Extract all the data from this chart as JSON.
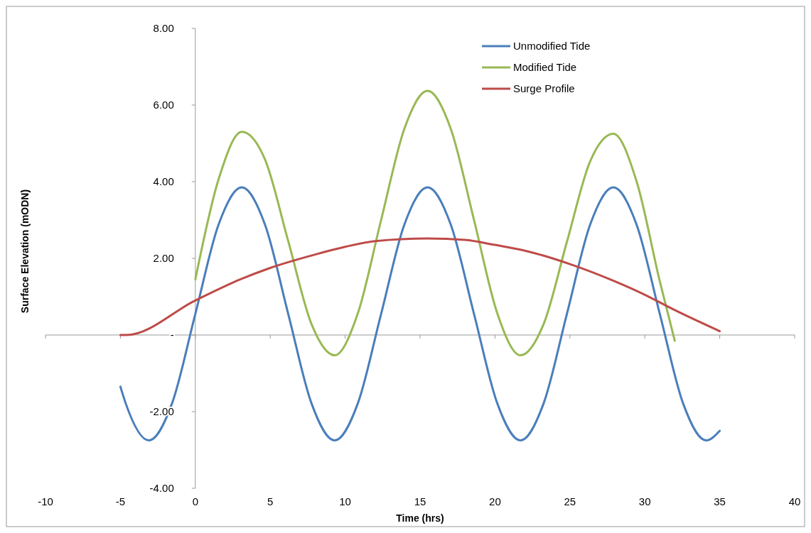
{
  "chart_data": {
    "type": "line",
    "xlabel": "Time (hrs)",
    "ylabel": "Surface Elevation (mODN)",
    "xlim": [
      -10,
      40
    ],
    "xticks": [
      -10,
      -5,
      0,
      5,
      10,
      15,
      20,
      25,
      30,
      35,
      40
    ],
    "ylim": [
      -4,
      8
    ],
    "yticks": [
      {
        "value": -4,
        "label": "-4.00"
      },
      {
        "value": -2,
        "label": "-2.00"
      },
      {
        "value": 0,
        "label": "-"
      },
      {
        "value": 2,
        "label": "2.00"
      },
      {
        "value": 4,
        "label": "4.00"
      },
      {
        "value": 6,
        "label": "6.00"
      },
      {
        "value": 8,
        "label": "8.00"
      }
    ],
    "legend": "top right",
    "marker": "none",
    "series": [
      {
        "name": "Unmodified Tide",
        "color": "#4a7ebb",
        "x": [
          -5,
          -4.65,
          -3.1,
          -1.55,
          0,
          1.55,
          3.1,
          4.65,
          6.2,
          7.75,
          9.3,
          10.85,
          12.4,
          13.95,
          15.5,
          17.05,
          18.6,
          20.15,
          21.7,
          23.25,
          24.8,
          26.35,
          27.9,
          29.45,
          31,
          32.55,
          34.1,
          35
        ],
        "values": [
          -1.35,
          -1.78,
          -2.75,
          -1.78,
          0.55,
          2.88,
          3.85,
          2.88,
          0.55,
          -1.78,
          -2.75,
          -1.78,
          0.55,
          2.88,
          3.85,
          2.88,
          0.55,
          -1.78,
          -2.75,
          -1.78,
          0.55,
          2.88,
          3.85,
          2.88,
          0.55,
          -1.78,
          -2.75,
          -2.5
        ]
      },
      {
        "name": "Modified Tide",
        "color": "#98b954",
        "x": [
          0,
          1.55,
          3.1,
          4.65,
          6.2,
          7.75,
          9.3,
          10.85,
          12.4,
          13.95,
          15.5,
          17.05,
          18.6,
          20.15,
          21.7,
          23.25,
          24.8,
          26.35,
          27.9,
          29.45,
          31,
          32
        ],
        "values": [
          1.45,
          4.06,
          5.3,
          4.58,
          2.45,
          0.29,
          -0.53,
          0.57,
          3.0,
          5.38,
          6.37,
          5.38,
          3.0,
          0.57,
          -0.53,
          0.29,
          2.43,
          4.53,
          5.25,
          4.01,
          1.4,
          -0.15
        ]
      },
      {
        "name": "Surge Profile",
        "color": "#be4b48",
        "x": [
          -5,
          -4.6,
          0,
          3,
          5,
          8,
          10,
          12,
          15.5,
          18,
          20,
          22,
          25,
          28,
          30,
          32,
          35
        ],
        "values": [
          0,
          0,
          0.9,
          1.45,
          1.75,
          2.1,
          2.3,
          2.45,
          2.52,
          2.48,
          2.35,
          2.2,
          1.85,
          1.4,
          1.05,
          0.65,
          0.1
        ]
      }
    ]
  }
}
